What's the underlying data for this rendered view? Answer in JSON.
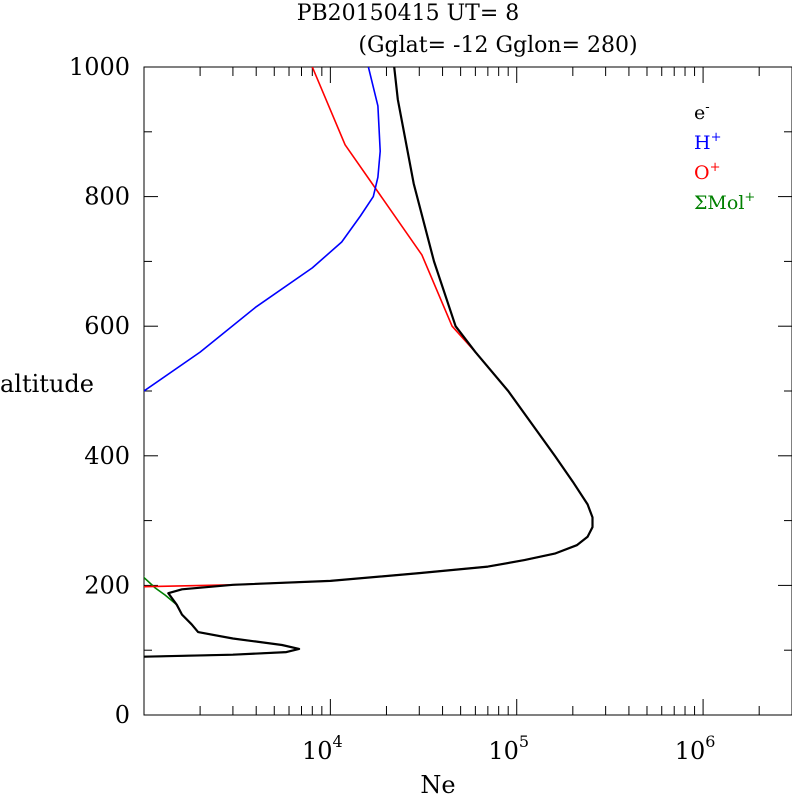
{
  "chart_data": {
    "type": "line",
    "title": "PB20150415   UT=  8",
    "subtitle": "(Gglat= -12   Gglon=  280)",
    "xlabel": "Ne",
    "ylabel": "altitude",
    "x_scale": "log",
    "xlim": [
      1000,
      3000000
    ],
    "ylim": [
      0,
      1000
    ],
    "y_ticks": [
      0,
      200,
      400,
      600,
      800,
      1000
    ],
    "x_tick_labels": [
      {
        "base": "10",
        "exp": "4",
        "value": 10000
      },
      {
        "base": "10",
        "exp": "5",
        "value": 100000
      },
      {
        "base": "10",
        "exp": "6",
        "value": 1000000
      }
    ],
    "grid": false,
    "legend_position": "top-right",
    "legend": [
      {
        "label": "e",
        "sup": "-",
        "color": "#000000"
      },
      {
        "label": "H",
        "sup": "+",
        "color": "#0000ff"
      },
      {
        "label": "O",
        "sup": "+",
        "color": "#ff0000"
      },
      {
        "label": "ΣMol",
        "sup": "+",
        "color": "#008000"
      }
    ],
    "series": [
      {
        "name": "ΣMol+",
        "color": "#008000",
        "width": 1.6,
        "points": [
          [
            950,
            225
          ],
          [
            1000,
            212
          ],
          [
            1150,
            196
          ],
          [
            1300,
            185
          ],
          [
            1500,
            170
          ],
          [
            1600,
            155
          ],
          [
            1800,
            140
          ],
          [
            1950,
            128
          ],
          [
            3000,
            118
          ],
          [
            5500,
            108
          ],
          [
            6800,
            102
          ],
          [
            5800,
            97
          ],
          [
            3000,
            93
          ],
          [
            1000,
            90
          ]
        ]
      },
      {
        "name": "O+",
        "color": "#ff0000",
        "width": 1.6,
        "points": [
          [
            1000,
            198
          ],
          [
            3000,
            201
          ],
          [
            10000,
            207
          ],
          [
            30000,
            219
          ],
          [
            70000,
            229
          ],
          [
            110000,
            239
          ],
          [
            160000,
            249
          ],
          [
            210000,
            262
          ],
          [
            240000,
            275
          ],
          [
            255000,
            290
          ],
          [
            255000,
            305
          ],
          [
            240000,
            325
          ],
          [
            200000,
            360
          ],
          [
            160000,
            400
          ],
          [
            120000,
            450
          ],
          [
            90000,
            500
          ],
          [
            60000,
            560
          ],
          [
            45000,
            600
          ],
          [
            31000,
            710
          ],
          [
            12000,
            880
          ],
          [
            8000,
            1000
          ]
        ]
      },
      {
        "name": "H+",
        "color": "#0000ff",
        "width": 1.6,
        "points": [
          [
            1000,
            500
          ],
          [
            2000,
            560
          ],
          [
            4000,
            630
          ],
          [
            8000,
            690
          ],
          [
            11500,
            730
          ],
          [
            14500,
            770
          ],
          [
            17000,
            800
          ],
          [
            18000,
            830
          ],
          [
            18500,
            870
          ],
          [
            18000,
            940
          ],
          [
            16000,
            1000
          ]
        ]
      },
      {
        "name": "e-",
        "color": "#000000",
        "width": 2.2,
        "points": [
          [
            1000,
            90
          ],
          [
            3000,
            93
          ],
          [
            5800,
            97
          ],
          [
            6800,
            102
          ],
          [
            5500,
            108
          ],
          [
            3000,
            118
          ],
          [
            1950,
            128
          ],
          [
            1800,
            140
          ],
          [
            1600,
            155
          ],
          [
            1500,
            170
          ],
          [
            1350,
            188
          ],
          [
            1600,
            194
          ],
          [
            3000,
            201
          ],
          [
            10000,
            207
          ],
          [
            30000,
            219
          ],
          [
            70000,
            229
          ],
          [
            110000,
            239
          ],
          [
            160000,
            249
          ],
          [
            210000,
            262
          ],
          [
            240000,
            275
          ],
          [
            255000,
            290
          ],
          [
            255000,
            305
          ],
          [
            240000,
            325
          ],
          [
            200000,
            360
          ],
          [
            160000,
            400
          ],
          [
            120000,
            450
          ],
          [
            90000,
            500
          ],
          [
            60000,
            560
          ],
          [
            47000,
            600
          ],
          [
            36000,
            700
          ],
          [
            28000,
            820
          ],
          [
            23000,
            950
          ],
          [
            22000,
            1000
          ]
        ]
      }
    ]
  }
}
